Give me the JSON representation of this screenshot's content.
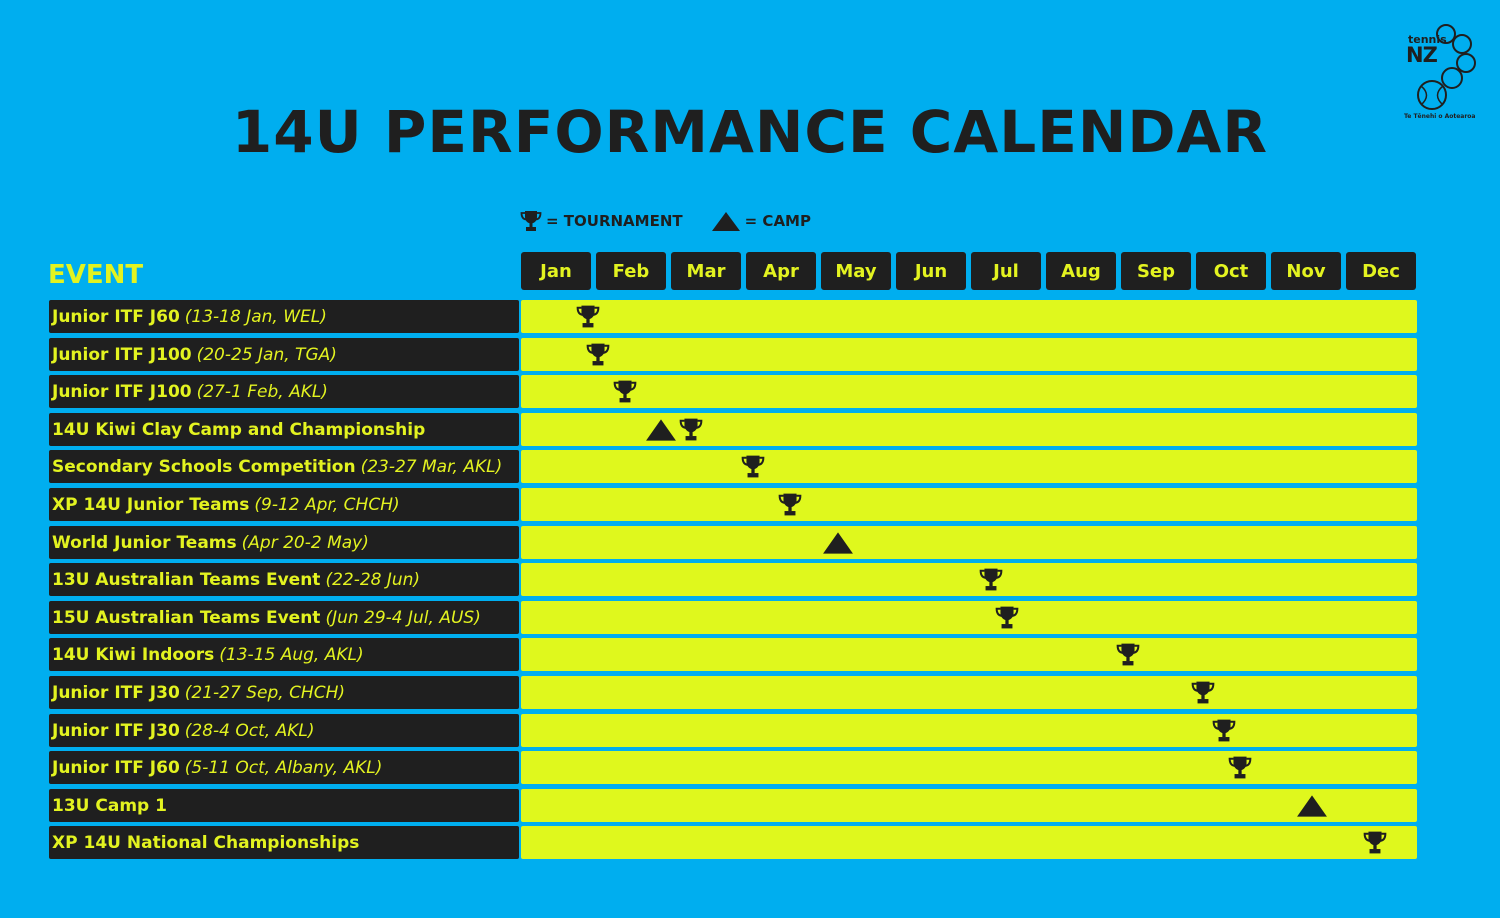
{
  "title": "14U PERFORMANCE CALENDAR",
  "logo": {
    "word": "tennis",
    "nz": "NZ",
    "subtitle": "Te Tēnehi o Aotearoa"
  },
  "legend": {
    "tournament_label": "= TOURNAMENT",
    "camp_label": "= CAMP",
    "tournament_icon": "trophy-icon",
    "camp_icon": "triangle-icon"
  },
  "event_header": "EVENT",
  "months": [
    "Jan",
    "Feb",
    "Mar",
    "Apr",
    "May",
    "Jun",
    "Jul",
    "Aug",
    "Sep",
    "Oct",
    "Nov",
    "Dec"
  ],
  "colors": {
    "background": "#00aeef",
    "dark": "#1f1f1f",
    "yellow": "#e3f320",
    "bar": "#dff81d"
  },
  "events": [
    {
      "name": "Junior ITF J60",
      "details": "(13-18 Jan, WEL)",
      "markers": [
        {
          "type": "tournament",
          "month": 0.45
        }
      ]
    },
    {
      "name": "Junior ITF J100",
      "details": "(20-25 Jan, TGA)",
      "markers": [
        {
          "type": "tournament",
          "month": 0.58
        }
      ]
    },
    {
      "name": "Junior ITF J100",
      "details": "(27-1 Feb, AKL)",
      "markers": [
        {
          "type": "tournament",
          "month": 0.95
        }
      ]
    },
    {
      "name": "14U Kiwi Clay Camp and Championship",
      "details": "",
      "markers": [
        {
          "type": "camp",
          "month": 1.42
        },
        {
          "type": "tournament",
          "month": 1.83
        }
      ]
    },
    {
      "name": "Secondary Schools Competition",
      "details": "(23-27 Mar, AKL)",
      "markers": [
        {
          "type": "tournament",
          "month": 2.65
        }
      ]
    },
    {
      "name": "XP 14U Junior Teams",
      "details": "(9-12 Apr, CHCH)",
      "markers": [
        {
          "type": "tournament",
          "month": 3.14
        }
      ]
    },
    {
      "name": "World Junior Teams",
      "details": "(Apr 20-2 May)",
      "markers": [
        {
          "type": "camp",
          "month": 3.78
        }
      ]
    },
    {
      "name": "13U Australian Teams Event",
      "details": "(22-28 Jun)",
      "markers": [
        {
          "type": "tournament",
          "month": 5.82
        }
      ]
    },
    {
      "name": "15U Australian Teams Event",
      "details": "(Jun 29-4 Jul, AUS)",
      "markers": [
        {
          "type": "tournament",
          "month": 6.04
        }
      ]
    },
    {
      "name": "14U Kiwi Indoors",
      "details": "(13-15 Aug, AKL)",
      "markers": [
        {
          "type": "tournament",
          "month": 7.65
        }
      ]
    },
    {
      "name": "Junior ITF J30",
      "details": "(21-27 Sep, CHCH)",
      "markers": [
        {
          "type": "tournament",
          "month": 8.65
        }
      ]
    },
    {
      "name": "Junior ITF J30",
      "details": "(28-4 Oct, AKL)",
      "markers": [
        {
          "type": "tournament",
          "month": 8.93
        }
      ]
    },
    {
      "name": "Junior ITF J60",
      "details": "(5-11 Oct, Albany, AKL)",
      "markers": [
        {
          "type": "tournament",
          "month": 9.15
        }
      ]
    },
    {
      "name": "13U Camp 1",
      "details": "",
      "markers": [
        {
          "type": "camp",
          "month": 10.1
        }
      ]
    },
    {
      "name": "XP 14U National Championships",
      "details": "",
      "markers": [
        {
          "type": "tournament",
          "month": 10.95
        }
      ]
    }
  ]
}
